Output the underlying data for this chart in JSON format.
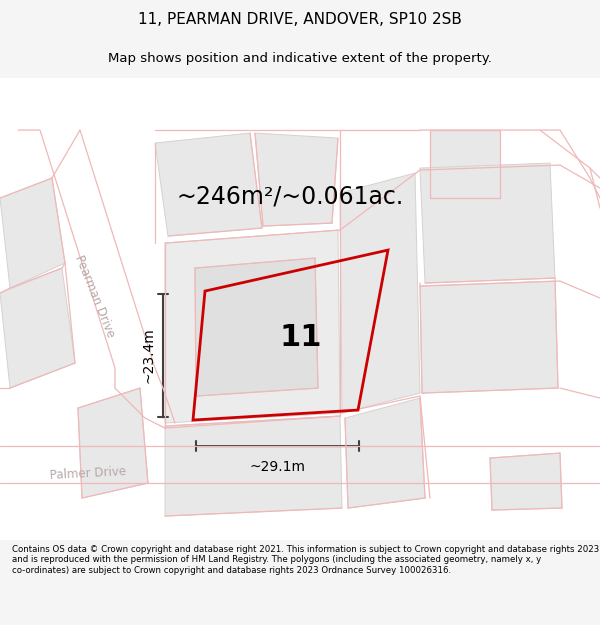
{
  "title_line1": "11, PEARMAN DRIVE, ANDOVER, SP10 2SB",
  "title_line2": "Map shows position and indicative extent of the property.",
  "area_text": "~246m²/~0.061ac.",
  "plot_number": "11",
  "dim_width": "~29.1m",
  "dim_height": "~23.4m",
  "street_label1": "Pearman Drive",
  "street_label2": "Palmer Drive",
  "footer_text": "Contains OS data © Crown copyright and database right 2021. This information is subject to Crown copyright and database rights 2023 and is reproduced with the permission of HM Land Registry. The polygons (including the associated geometry, namely x, y co-ordinates) are subject to Crown copyright and database rights 2023 Ordnance Survey 100026316.",
  "bg_color": "#f5f5f5",
  "map_bg": "#ffffff",
  "road_line_color": "#f0b8b8",
  "plot_outline": "#cc0000",
  "dim_color": "#404040",
  "street_color": "#b8a8a8",
  "block_fill": "#e8e8e8",
  "block_stroke": "#d8d0d0",
  "title_fs": 11,
  "subtitle_fs": 9.5,
  "area_fs": 17,
  "number_fs": 22,
  "dim_fs": 10,
  "street_fs": 8.5,
  "footer_fs": 6.2
}
